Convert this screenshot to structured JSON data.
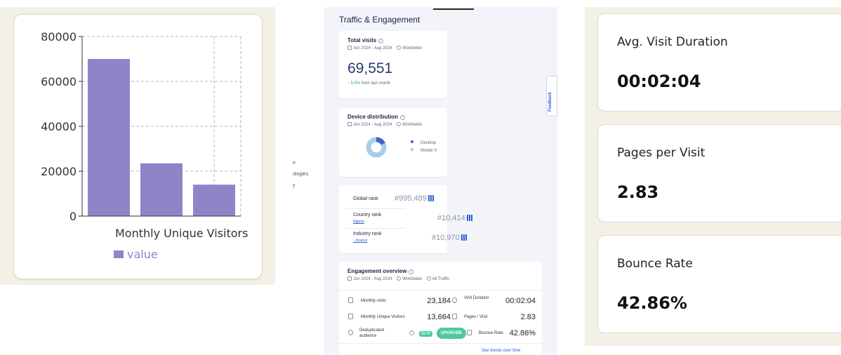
{
  "chart_data": {
    "type": "bar",
    "categories": [
      "",
      "",
      ""
    ],
    "values": [
      70000,
      23500,
      14000
    ],
    "xlabel": "Monthly Unique Visitors",
    "ylabel": "",
    "ylim": [
      0,
      80000
    ],
    "yticks": [
      "0",
      "20000",
      "40000",
      "60000",
      "80000"
    ],
    "grid": true,
    "legend": {
      "placement": "bottom",
      "entries": [
        "value"
      ]
    },
    "colors": {
      "bar": "#8e85c9"
    }
  },
  "sidebar_fragment": [
    "e",
    "ologies",
    "y"
  ],
  "traffic": {
    "title": "Traffic & Engagement",
    "feedback_label": "Feedback",
    "total_visits": {
      "title": "Total visits",
      "date_range": "Jun 2024 - Aug 2024",
      "region": "Worldwide",
      "value": "69,551",
      "change": "6.5%",
      "change_suffix": "from last month"
    },
    "device": {
      "title": "Device distribution",
      "date_range": "Jun 2024 - Aug 2024",
      "region": "Worldwide",
      "legend": [
        "Desktop",
        "Mobile V"
      ],
      "colors": {
        "desktop": "#3f66c4",
        "mobile": "#a8cdea"
      }
    },
    "ranks": {
      "global_label": "Global rank",
      "global_value": "#995,489",
      "country_label": "Country rank",
      "country_sub": "Nigeria",
      "country_value": "#10,414",
      "industry_label": "Industry rank",
      "industry_sub": "...finance",
      "industry_value": "#10,970"
    },
    "engagement": {
      "title": "Engagement overview",
      "date_range": "Jun 2024 - Aug 2024",
      "region": "Worldwide",
      "traffic_type": "All Traffic",
      "rows": [
        {
          "label": "Monthly visits",
          "value": "23,184",
          "label2": "Visit Duration",
          "value2": "00:02:04"
        },
        {
          "label": "Monthly Unique Visitors",
          "value": "13,664",
          "label2": "Pages / Visit",
          "value2": "2.83"
        },
        {
          "label": "Deduplicated audience",
          "value": "",
          "label2": "Bounce Rate",
          "value2": "42.86%"
        }
      ],
      "beta_badge": "BETA",
      "upgrade_label": "UPGRADE",
      "trends_link": "See trends over time"
    }
  },
  "metrics": [
    {
      "label": "Avg. Visit Duration",
      "value": "00:02:04"
    },
    {
      "label": "Pages per Visit",
      "value": "2.83"
    },
    {
      "label": "Bounce Rate",
      "value": "42.86%"
    }
  ]
}
